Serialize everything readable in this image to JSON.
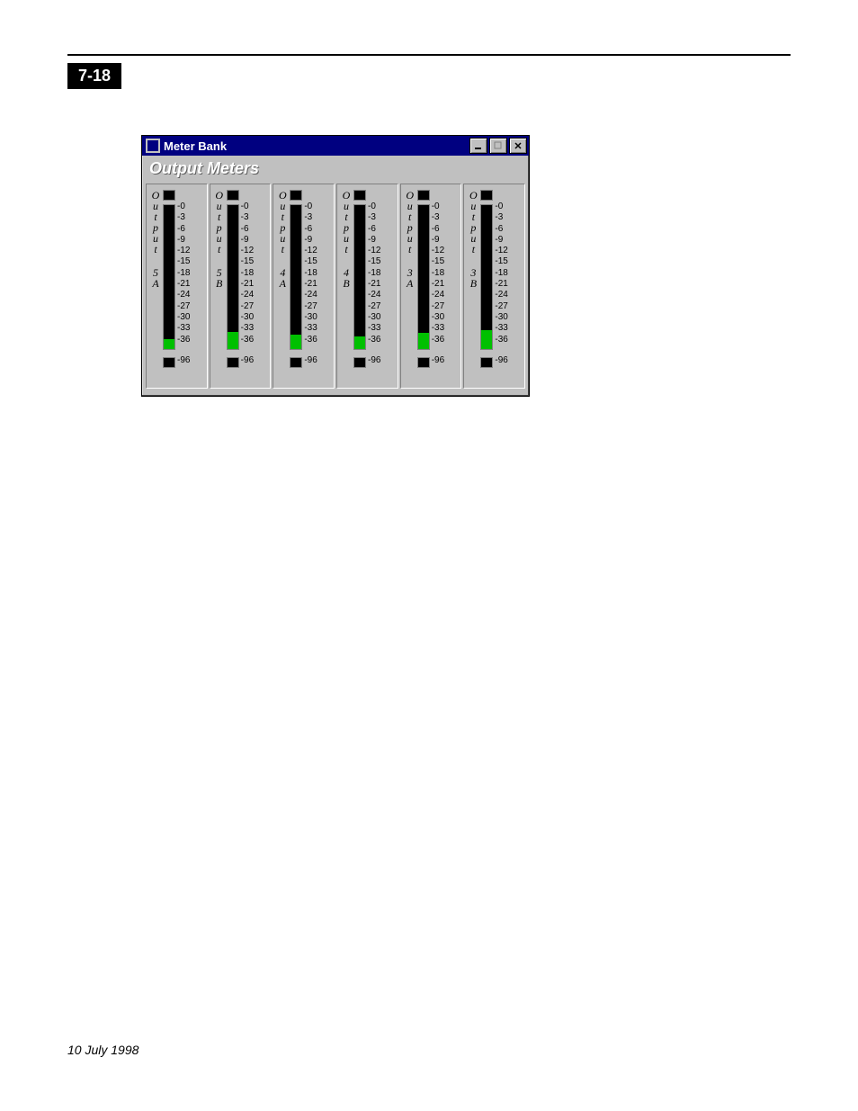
{
  "page": {
    "number_label": "7-18",
    "footer_date": "10 July 1998"
  },
  "window": {
    "title": "Meter Bank",
    "panel_title": "Output Meters",
    "colors": {
      "titlebar_bg": "#000080",
      "titlebar_fg": "#ffffff",
      "face": "#c0c0c0",
      "meter_fill": "#00c000",
      "meter_bg": "#000000"
    },
    "scale_labels": [
      "-0",
      "-3",
      "-6",
      "-9",
      "-12",
      "-15",
      "-18",
      "-21",
      "-24",
      "-27",
      "-30",
      "-33",
      "-36"
    ],
    "bottom_label": "-96",
    "meters": [
      {
        "vlabel_top": [
          "O",
          "u",
          "t",
          "p",
          "u",
          "t"
        ],
        "vlabel_bot": [
          "5",
          "A"
        ],
        "fill_pct": 7
      },
      {
        "vlabel_top": [
          "O",
          "u",
          "t",
          "p",
          "u",
          "t"
        ],
        "vlabel_bot": [
          "5",
          "B"
        ],
        "fill_pct": 12
      },
      {
        "vlabel_top": [
          "O",
          "u",
          "t",
          "p",
          "u",
          "t"
        ],
        "vlabel_bot": [
          "4",
          "A"
        ],
        "fill_pct": 10
      },
      {
        "vlabel_top": [
          "O",
          "u",
          "t",
          "p",
          "u",
          "t"
        ],
        "vlabel_bot": [
          "4",
          "B"
        ],
        "fill_pct": 9
      },
      {
        "vlabel_top": [
          "O",
          "u",
          "t",
          "p",
          "u",
          "t"
        ],
        "vlabel_bot": [
          "3",
          "A"
        ],
        "fill_pct": 11
      },
      {
        "vlabel_top": [
          "O",
          "u",
          "t",
          "p",
          "u",
          "t"
        ],
        "vlabel_bot": [
          "3",
          "B"
        ],
        "fill_pct": 13
      }
    ]
  }
}
